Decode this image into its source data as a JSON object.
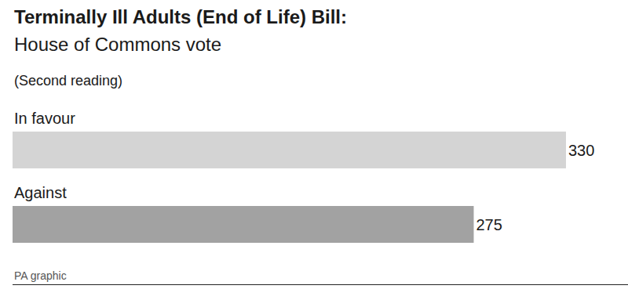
{
  "chart_data": {
    "type": "bar",
    "title": "Terminally Ill Adults (End of Life) Bill:",
    "subtitle": "House of Commons vote",
    "annotations": [
      "(Second reading)"
    ],
    "source": "PA graphic",
    "orientation": "horizontal",
    "categories": [
      "In favour",
      "Against"
    ],
    "values": [
      330,
      275
    ],
    "colors": [
      "#d4d4d4",
      "#a2a2a2"
    ],
    "xlim": [
      0,
      367
    ],
    "data_labels": true,
    "tick_labels": false,
    "grid": false
  }
}
